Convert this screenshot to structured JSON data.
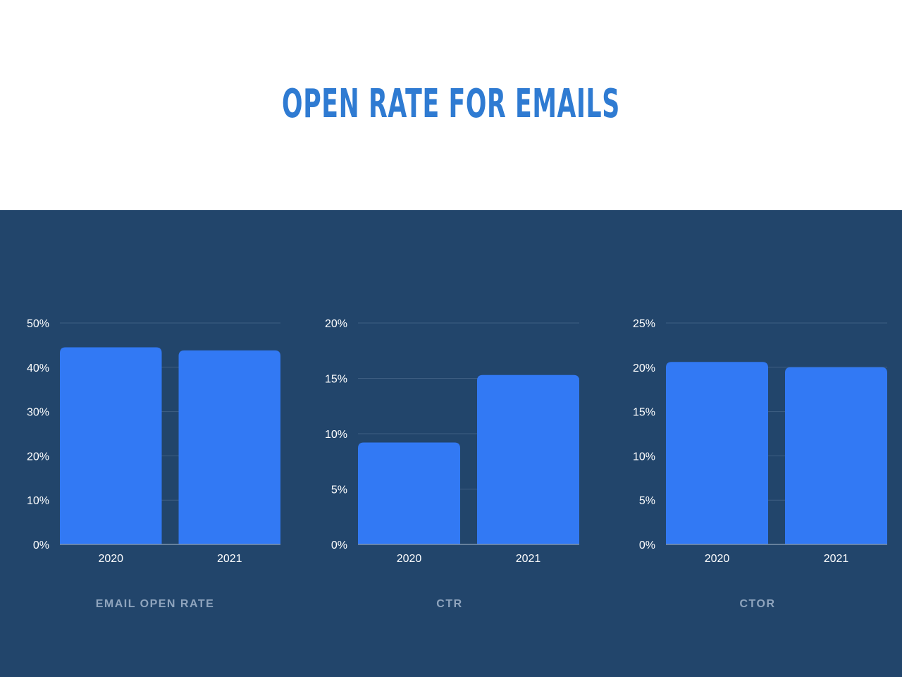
{
  "page": {
    "title": "OPEN RATE FOR EMAILS"
  },
  "colors": {
    "title": "#2f7bd2",
    "panel_background": "#22456b",
    "bar": "#3279f4",
    "grid": "#3f5f83",
    "tick_label": "#ffffff",
    "caption": "#8fa4bd"
  },
  "chart_data": [
    {
      "type": "bar",
      "categories": [
        "2020",
        "2021"
      ],
      "values": [
        44.5,
        43.8
      ],
      "yticks": [
        "0%",
        "10%",
        "20%",
        "30%",
        "40%",
        "50%"
      ],
      "ylim": [
        0,
        50
      ],
      "caption": "EMAIL OPEN RATE",
      "grid": true
    },
    {
      "type": "bar",
      "categories": [
        "2020",
        "2021"
      ],
      "values": [
        9.2,
        15.3
      ],
      "yticks": [
        "0%",
        "5%",
        "10%",
        "15%",
        "20%"
      ],
      "ylim": [
        0,
        20
      ],
      "caption": "CTR",
      "grid": true
    },
    {
      "type": "bar",
      "categories": [
        "2020",
        "2021"
      ],
      "values": [
        20.6,
        20.0
      ],
      "yticks": [
        "0%",
        "5%",
        "10%",
        "15%",
        "20%",
        "25%"
      ],
      "ylim": [
        0,
        25
      ],
      "caption": "CTOR",
      "grid": true
    }
  ]
}
